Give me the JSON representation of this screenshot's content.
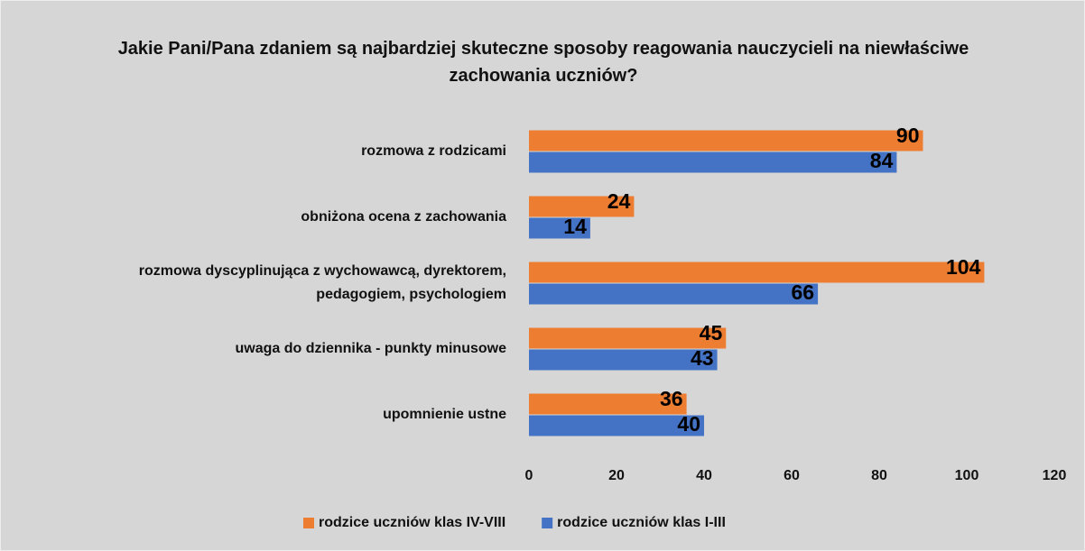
{
  "chart_data": {
    "type": "bar",
    "orientation": "horizontal",
    "title": "Jakie Pani/Pana zdaniem są najbardziej skuteczne sposoby reagowania nauczycieli na niewłaściwe zachowania uczniów?",
    "categories": [
      "rozmowa z rodzicami",
      "obniżona ocena z zachowania",
      "rozmowa dyscyplinująca z wychowawcą, dyrektorem, pedagogiem, psychologiem",
      "uwaga do dziennika - punkty minusowe",
      "upomnienie ustne"
    ],
    "series": [
      {
        "name": "rodzice uczniów klas IV-VIII",
        "color": "#ed7d31",
        "values": [
          90,
          24,
          104,
          45,
          36
        ]
      },
      {
        "name": "rodzice uczniów klas I-III",
        "color": "#4472c4",
        "values": [
          84,
          14,
          66,
          43,
          40
        ]
      }
    ],
    "xlim": [
      0,
      120
    ],
    "xticks": [
      0,
      20,
      40,
      60,
      80,
      100,
      120
    ],
    "grid": false,
    "legend": "bottom"
  }
}
